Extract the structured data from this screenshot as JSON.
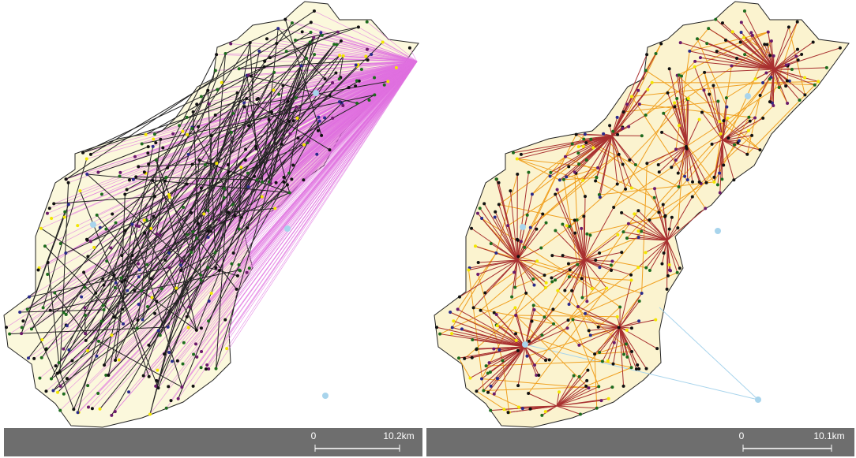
{
  "panels": [
    {
      "scale_bar": {
        "start": "0",
        "end": "10.2km"
      }
    },
    {
      "scale_bar": {
        "start": "0",
        "end": "10.1km"
      }
    }
  ]
}
